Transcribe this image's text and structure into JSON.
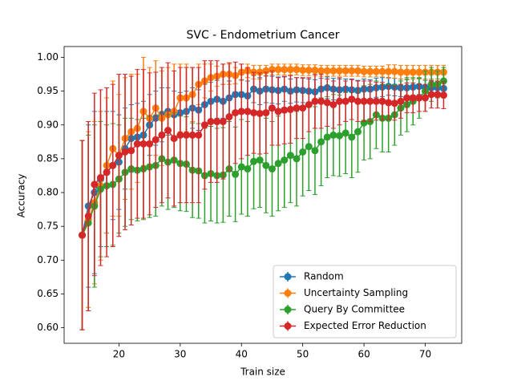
{
  "chart_data": {
    "type": "errorbar_line",
    "title": "SVC - Endometrium Cancer",
    "xlabel": "Train size",
    "ylabel": "Accuracy",
    "x": [
      14,
      15,
      16,
      17,
      18,
      19,
      20,
      21,
      22,
      23,
      24,
      25,
      26,
      27,
      28,
      29,
      30,
      31,
      32,
      33,
      34,
      35,
      36,
      37,
      38,
      39,
      40,
      41,
      42,
      43,
      44,
      45,
      46,
      47,
      48,
      49,
      50,
      51,
      52,
      53,
      54,
      55,
      56,
      57,
      58,
      59,
      60,
      61,
      62,
      63,
      64,
      65,
      66,
      67,
      68,
      69,
      70,
      71,
      72,
      73
    ],
    "xlim": [
      11.05,
      75.95
    ],
    "xticks": [
      20,
      30,
      40,
      50,
      60,
      70
    ],
    "ylim": [
      0.577,
      1.016
    ],
    "yticks": [
      {
        "value": 0.6,
        "label": "0.60"
      },
      {
        "value": 0.65,
        "label": "0.65"
      },
      {
        "value": 0.7,
        "label": "0.70"
      },
      {
        "value": 0.75,
        "label": "0.75"
      },
      {
        "value": 0.8,
        "label": "0.80"
      },
      {
        "value": 0.85,
        "label": "0.85"
      },
      {
        "value": 0.9,
        "label": "0.90"
      },
      {
        "value": 0.95,
        "label": "0.95"
      },
      {
        "value": 1.0,
        "label": "1.00"
      }
    ],
    "legend": "lower right",
    "series": [
      {
        "name": "Random",
        "color": "#1f77b4",
        "values": [
          0.737,
          0.78,
          0.8,
          0.82,
          0.83,
          0.84,
          0.845,
          0.865,
          0.88,
          0.882,
          0.885,
          0.9,
          0.91,
          0.915,
          0.92,
          0.915,
          0.918,
          0.92,
          0.925,
          0.922,
          0.93,
          0.935,
          0.938,
          0.935,
          0.94,
          0.945,
          0.945,
          0.943,
          0.953,
          0.95,
          0.953,
          0.952,
          0.951,
          0.953,
          0.95,
          0.952,
          0.951,
          0.95,
          0.949,
          0.953,
          0.955,
          0.953,
          0.952,
          0.953,
          0.952,
          0.951,
          0.953,
          0.953,
          0.955,
          0.956,
          0.957,
          0.956,
          0.955,
          0.955,
          0.956,
          0.957,
          0.955,
          0.955,
          0.955,
          0.954
        ],
        "errors": [
          0.14,
          0.12,
          0.12,
          0.1,
          0.09,
          0.08,
          0.07,
          0.06,
          0.05,
          0.05,
          0.05,
          0.045,
          0.04,
          0.04,
          0.035,
          0.035,
          0.03,
          0.03,
          0.03,
          0.03,
          0.03,
          0.028,
          0.028,
          0.025,
          0.025,
          0.025,
          0.022,
          0.022,
          0.02,
          0.02,
          0.02,
          0.02,
          0.02,
          0.018,
          0.018,
          0.018,
          0.018,
          0.018,
          0.018,
          0.016,
          0.016,
          0.016,
          0.016,
          0.015,
          0.015,
          0.015,
          0.015,
          0.014,
          0.014,
          0.014,
          0.013,
          0.013,
          0.013,
          0.012,
          0.012,
          0.012,
          0.011,
          0.011,
          0.01,
          0.01
        ]
      },
      {
        "name": "Uncertainty Sampling",
        "color": "#ff7f0e",
        "values": [
          0.737,
          0.76,
          0.785,
          0.81,
          0.84,
          0.865,
          0.855,
          0.88,
          0.89,
          0.895,
          0.92,
          0.91,
          0.925,
          0.91,
          0.915,
          0.92,
          0.94,
          0.94,
          0.945,
          0.96,
          0.965,
          0.97,
          0.972,
          0.975,
          0.975,
          0.973,
          0.978,
          0.98,
          0.978,
          0.978,
          0.98,
          0.982,
          0.982,
          0.982,
          0.982,
          0.982,
          0.981,
          0.981,
          0.981,
          0.98,
          0.98,
          0.98,
          0.98,
          0.98,
          0.98,
          0.98,
          0.979,
          0.979,
          0.979,
          0.979,
          0.979,
          0.979,
          0.978,
          0.978,
          0.978,
          0.978,
          0.978,
          0.978,
          0.978,
          0.978
        ],
        "errors": [
          0.14,
          0.13,
          0.12,
          0.11,
          0.1,
          0.1,
          0.09,
          0.09,
          0.085,
          0.08,
          0.08,
          0.075,
          0.07,
          0.07,
          0.07,
          0.07,
          0.05,
          0.05,
          0.04,
          0.03,
          0.025,
          0.02,
          0.015,
          0.015,
          0.015,
          0.012,
          0.012,
          0.01,
          0.01,
          0.01,
          0.008,
          0.008,
          0.008,
          0.008,
          0.008,
          0.008,
          0.008,
          0.008,
          0.008,
          0.008,
          0.008,
          0.008,
          0.008,
          0.008,
          0.008,
          0.008,
          0.008,
          0.008,
          0.008,
          0.008,
          0.01,
          0.01,
          0.01,
          0.01,
          0.01,
          0.01,
          0.01,
          0.01,
          0.01,
          0.01
        ]
      },
      {
        "name": "Query By Committee",
        "color": "#2ca02c",
        "values": [
          0.737,
          0.755,
          0.78,
          0.805,
          0.81,
          0.812,
          0.82,
          0.83,
          0.835,
          0.833,
          0.835,
          0.838,
          0.84,
          0.85,
          0.845,
          0.848,
          0.843,
          0.842,
          0.833,
          0.832,
          0.825,
          0.828,
          0.825,
          0.826,
          0.835,
          0.827,
          0.838,
          0.835,
          0.846,
          0.848,
          0.84,
          0.835,
          0.843,
          0.848,
          0.855,
          0.85,
          0.86,
          0.868,
          0.862,
          0.875,
          0.882,
          0.885,
          0.884,
          0.888,
          0.882,
          0.89,
          0.903,
          0.905,
          0.915,
          0.91,
          0.91,
          0.915,
          0.925,
          0.93,
          0.935,
          0.94,
          0.95,
          0.96,
          0.96,
          0.965
        ],
        "errors": [
          0.14,
          0.13,
          0.12,
          0.1,
          0.09,
          0.09,
          0.08,
          0.08,
          0.075,
          0.075,
          0.075,
          0.075,
          0.075,
          0.07,
          0.07,
          0.07,
          0.07,
          0.07,
          0.07,
          0.07,
          0.07,
          0.07,
          0.07,
          0.07,
          0.07,
          0.07,
          0.07,
          0.07,
          0.07,
          0.07,
          0.07,
          0.07,
          0.07,
          0.07,
          0.07,
          0.07,
          0.065,
          0.065,
          0.065,
          0.065,
          0.06,
          0.06,
          0.06,
          0.06,
          0.06,
          0.06,
          0.055,
          0.055,
          0.05,
          0.05,
          0.05,
          0.045,
          0.04,
          0.04,
          0.035,
          0.03,
          0.03,
          0.025,
          0.02,
          0.02
        ]
      },
      {
        "name": "Expected Error Reduction",
        "color": "#d62728",
        "values": [
          0.737,
          0.765,
          0.812,
          0.822,
          0.83,
          0.84,
          0.855,
          0.86,
          0.862,
          0.872,
          0.872,
          0.872,
          0.878,
          0.885,
          0.892,
          0.88,
          0.885,
          0.885,
          0.885,
          0.885,
          0.9,
          0.905,
          0.905,
          0.905,
          0.912,
          0.918,
          0.92,
          0.92,
          0.918,
          0.917,
          0.918,
          0.925,
          0.92,
          0.922,
          0.923,
          0.925,
          0.925,
          0.93,
          0.935,
          0.935,
          0.933,
          0.93,
          0.935,
          0.935,
          0.938,
          0.935,
          0.935,
          0.935,
          0.935,
          0.935,
          0.933,
          0.932,
          0.935,
          0.94,
          0.94,
          0.94,
          0.94,
          0.945,
          0.945,
          0.944
        ],
        "errors": [
          0.14,
          0.14,
          0.135,
          0.13,
          0.125,
          0.12,
          0.12,
          0.115,
          0.11,
          0.11,
          0.11,
          0.105,
          0.1,
          0.1,
          0.1,
          0.1,
          0.1,
          0.1,
          0.1,
          0.1,
          0.095,
          0.09,
          0.09,
          0.085,
          0.08,
          0.075,
          0.07,
          0.065,
          0.06,
          0.06,
          0.06,
          0.055,
          0.05,
          0.05,
          0.05,
          0.045,
          0.045,
          0.04,
          0.04,
          0.04,
          0.035,
          0.035,
          0.035,
          0.03,
          0.03,
          0.03,
          0.03,
          0.03,
          0.028,
          0.028,
          0.025,
          0.025,
          0.025,
          0.022,
          0.022,
          0.02,
          0.02,
          0.02,
          0.02,
          0.02
        ]
      }
    ]
  }
}
